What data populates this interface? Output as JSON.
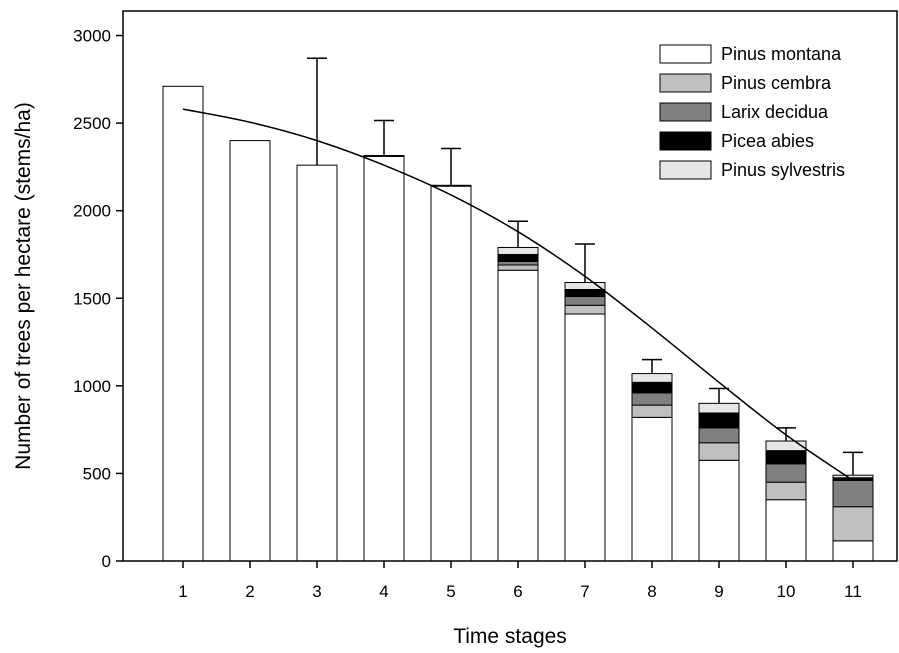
{
  "chart_data": {
    "type": "bar",
    "stacked": true,
    "title": "",
    "xlabel": "Time stages",
    "ylabel": "Number of trees per hectare (stems/ha)",
    "categories": [
      "1",
      "2",
      "3",
      "4",
      "5",
      "6",
      "7",
      "8",
      "9",
      "10",
      "11"
    ],
    "ylim": [
      0,
      3000
    ],
    "yticks": [
      0,
      500,
      1000,
      1500,
      2000,
      2500,
      3000
    ],
    "grid": false,
    "legend_position": "top-right",
    "series": [
      {
        "name": "Pinus montana",
        "color": "#ffffff",
        "values": [
          2710,
          2400,
          2260,
          2310,
          2140,
          1660,
          1410,
          820,
          575,
          350,
          115
        ]
      },
      {
        "name": "Pinus cembra",
        "color": "#c0c0c0",
        "values": [
          0,
          0,
          0,
          0,
          0,
          30,
          50,
          70,
          100,
          100,
          195
        ]
      },
      {
        "name": "Larix decidua",
        "color": "#808080",
        "values": [
          0,
          0,
          0,
          0,
          0,
          20,
          50,
          70,
          85,
          105,
          150
        ]
      },
      {
        "name": "Picea abies",
        "color": "#000000",
        "values": [
          0,
          0,
          0,
          5,
          5,
          40,
          40,
          60,
          85,
          75,
          15
        ]
      },
      {
        "name": "Pinus sylvestris",
        "color": "#e6e6e6",
        "values": [
          0,
          0,
          0,
          0,
          0,
          40,
          40,
          50,
          55,
          55,
          15
        ]
      }
    ],
    "error_bar_tops": [
      null,
      null,
      2870,
      2515,
      2355,
      1940,
      1810,
      1150,
      985,
      760,
      620
    ],
    "trend_line": {
      "type": "fitted curve",
      "x": [
        1,
        2,
        3,
        4,
        5,
        6,
        7,
        8,
        9,
        10,
        11
      ],
      "y": [
        2580,
        2505,
        2400,
        2260,
        2090,
        1880,
        1625,
        1330,
        1020,
        720,
        460
      ]
    }
  }
}
